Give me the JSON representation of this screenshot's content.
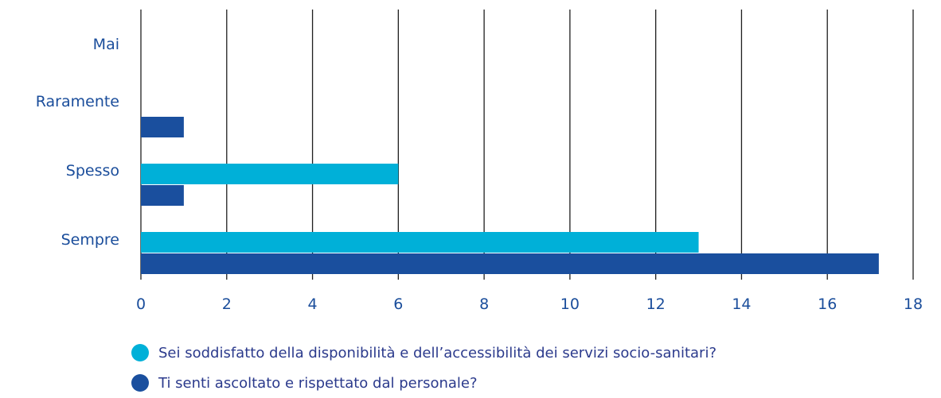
{
  "chart_data": {
    "type": "bar",
    "orientation": "horizontal",
    "categories": [
      "Mai",
      "Raramente",
      "Spesso",
      "Sempre"
    ],
    "series": [
      {
        "name": "Sei soddisfatto della disponibilità e dell’accessibilità dei servizi socio-sanitari?",
        "color": "#00b0d8",
        "values": [
          0,
          0,
          6,
          13
        ]
      },
      {
        "name": "Ti senti ascoltato e rispettato dal personale?",
        "color": "#1a4f9e",
        "values": [
          0,
          1,
          1,
          17.2
        ]
      }
    ],
    "xticks": [
      "0",
      "2",
      "4",
      "6",
      "8",
      "10",
      "12",
      "14",
      "16",
      "18"
    ],
    "xlim": [
      0,
      18
    ],
    "grid": true,
    "legend_position": "bottom-left"
  }
}
